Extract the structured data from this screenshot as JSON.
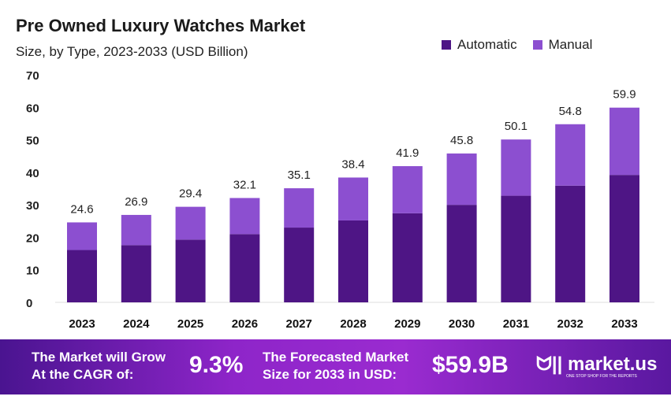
{
  "chart_data": {
    "type": "bar",
    "stacked": true,
    "title": "Pre Owned Luxury Watches Market",
    "subtitle": "Size, by Type, 2023-2033 (USD Billion)",
    "categories": [
      "2023",
      "2024",
      "2025",
      "2026",
      "2027",
      "2028",
      "2029",
      "2030",
      "2031",
      "2032",
      "2033"
    ],
    "series": [
      {
        "name": "Automatic",
        "color": "#4e1585",
        "values": [
          16.1,
          17.6,
          19.3,
          21.0,
          23.0,
          25.2,
          27.4,
          30.0,
          32.8,
          35.9,
          39.2
        ]
      },
      {
        "name": "Manual",
        "color": "#8c4fd0",
        "values": [
          8.5,
          9.3,
          10.1,
          11.1,
          12.1,
          13.2,
          14.5,
          15.8,
          17.3,
          18.9,
          20.7
        ]
      }
    ],
    "totals": [
      "24.6",
      "26.9",
      "29.4",
      "32.1",
      "35.1",
      "38.4",
      "41.9",
      "45.8",
      "50.1",
      "54.8",
      "59.9"
    ],
    "ylim": [
      0,
      70
    ],
    "yticks": [
      "0",
      "10",
      "20",
      "30",
      "40",
      "50",
      "60",
      "70"
    ],
    "grid": false,
    "legend_position": "top-right"
  },
  "footer": {
    "cagr_label_1": "The Market will Grow",
    "cagr_label_2": "At the CAGR of:",
    "cagr_value": "9.3%",
    "forecast_label_1": "The Forecasted Market",
    "forecast_label_2": "Size for 2033 in USD:",
    "forecast_value": "$59.9B",
    "logo_text": "market.us",
    "logo_tagline": "ONE STOP SHOP FOR THE REPORTS"
  }
}
